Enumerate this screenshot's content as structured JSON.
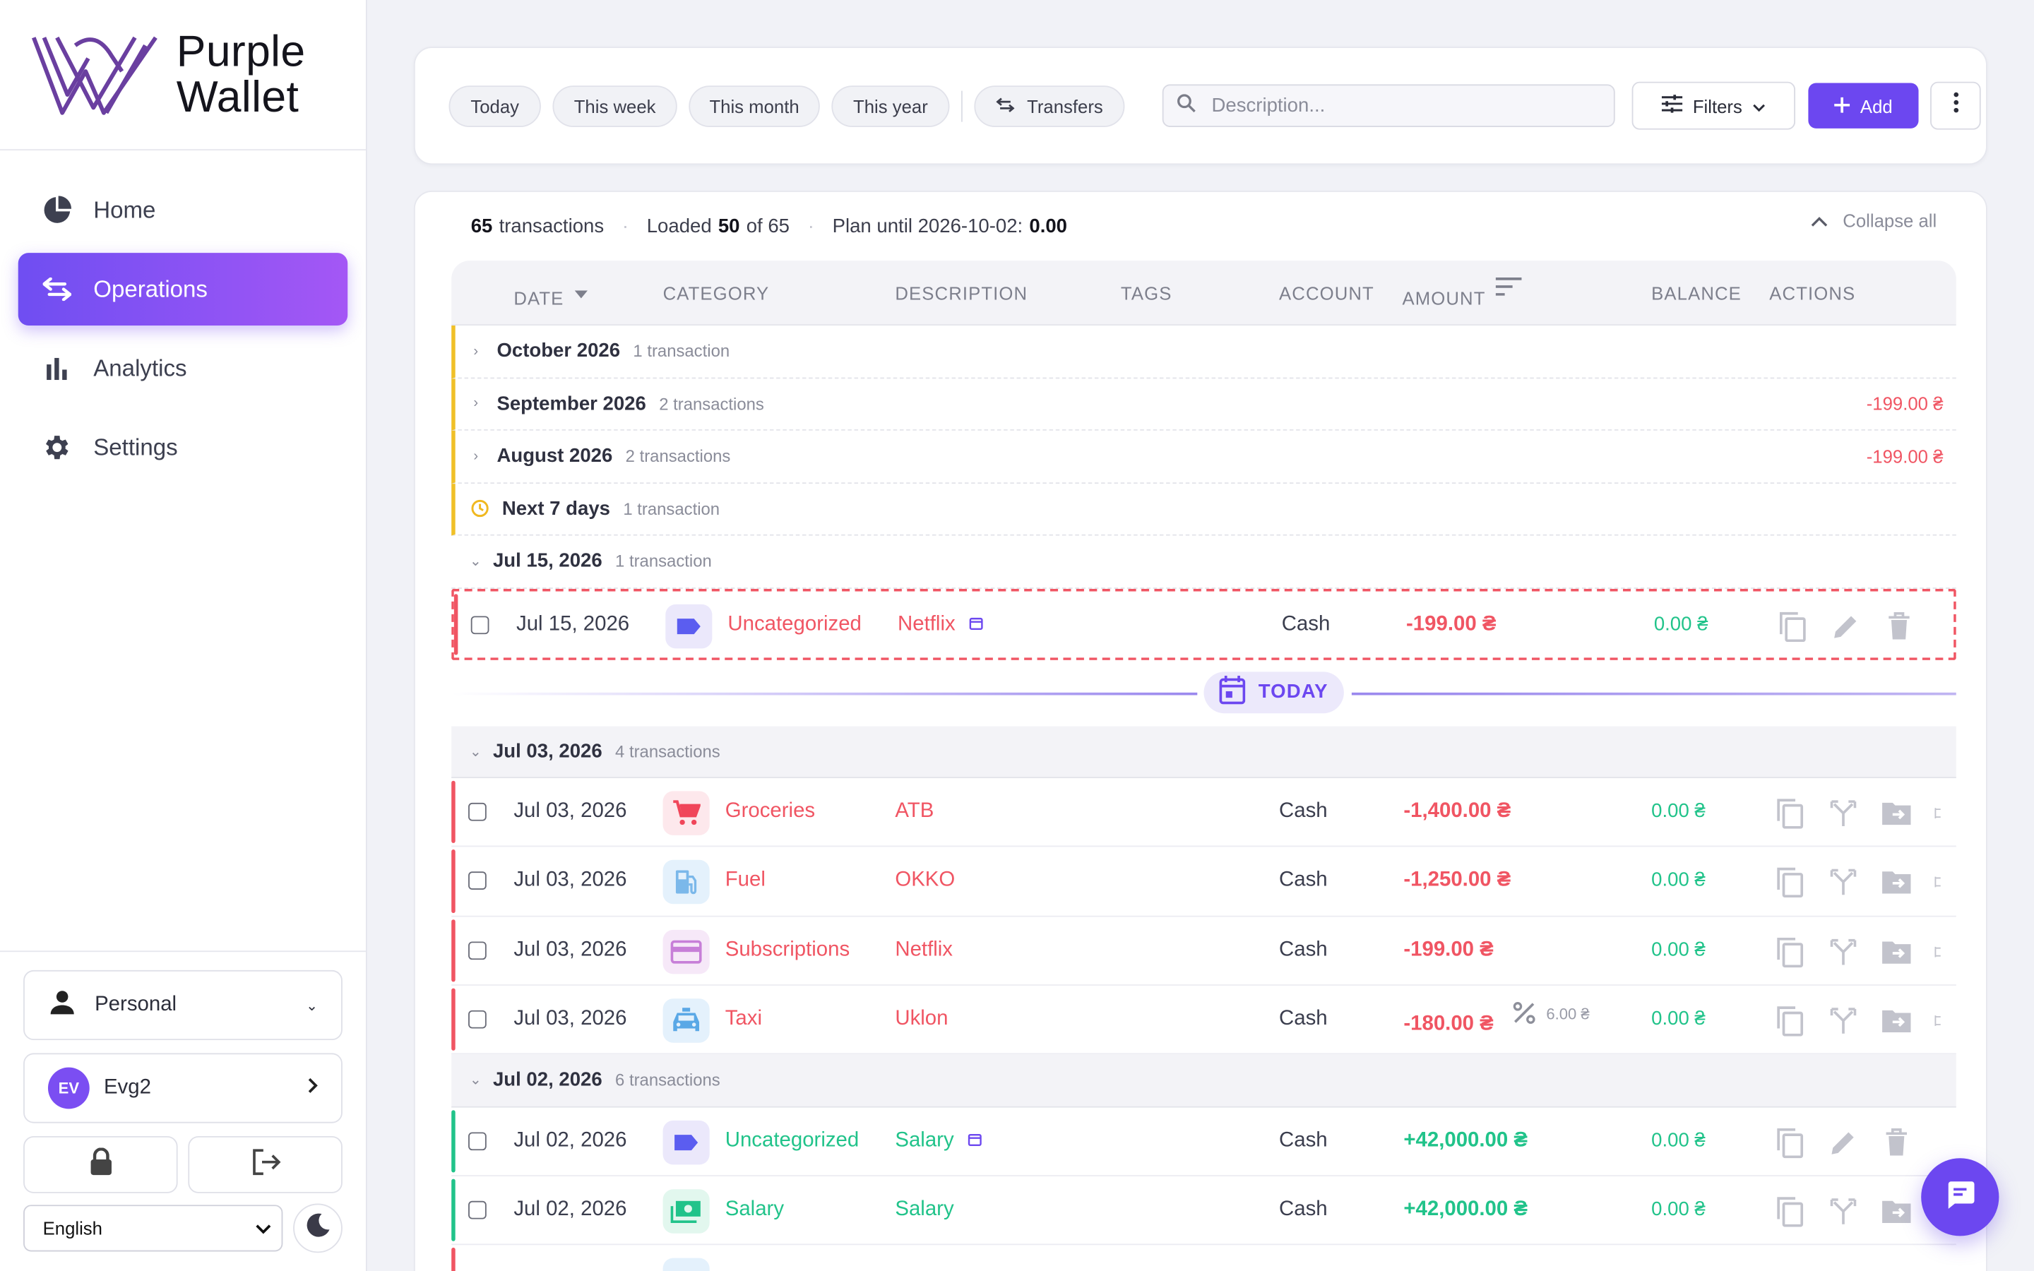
{
  "brand": {
    "line1": "Purple",
    "line2": "Wallet"
  },
  "nav": [
    {
      "label": "Home",
      "icon": "pie-chart-icon"
    },
    {
      "label": "Operations",
      "icon": "swap-arrows-icon",
      "active": true
    },
    {
      "label": "Analytics",
      "icon": "bar-chart-icon"
    },
    {
      "label": "Settings",
      "icon": "gear-icon"
    }
  ],
  "sidebar_bottom": {
    "workspace": "Personal",
    "user_initials": "EV",
    "user_name": "Evg2",
    "language": "English"
  },
  "toolbar": {
    "presets": [
      "Today",
      "This week",
      "This month",
      "This year"
    ],
    "transfers": "Transfers",
    "search_placeholder": "Description...",
    "filters": "Filters",
    "add": "Add"
  },
  "summary": {
    "count": "65",
    "count_label": "transactions",
    "loaded_prefix": "Loaded",
    "loaded": "50",
    "loaded_of": "of 65",
    "plan_label": "Plan until 2026-10-02:",
    "plan_value": "0.00",
    "collapse_all": "Collapse all"
  },
  "columns": {
    "date": "DATE",
    "category": "CATEGORY",
    "description": "DESCRIPTION",
    "tags": "TAGS",
    "account": "ACCOUNT",
    "amount": "AMOUNT",
    "balance": "BALANCE",
    "actions": "ACTIONS"
  },
  "future_groups": [
    {
      "title": "October 2026",
      "count": "1 transaction",
      "total": ""
    },
    {
      "title": "September 2026",
      "count": "2 transactions",
      "total": "-199.00 ₴"
    },
    {
      "title": "August 2026",
      "count": "2 transactions",
      "total": "-199.00 ₴"
    },
    {
      "title": "Next 7 days",
      "count": "1 transaction",
      "total": ""
    }
  ],
  "group_jul15": {
    "title": "Jul 15, 2026",
    "count": "1 transaction"
  },
  "pending_tx": {
    "date": "Jul 15, 2026",
    "category": "Uncategorized",
    "description": "Netflix",
    "account": "Cash",
    "amount": "-199.00 ₴",
    "balance": "0.00 ₴"
  },
  "today_label": "TODAY",
  "group_jul03": {
    "title": "Jul 03, 2026",
    "count": "4 transactions"
  },
  "jul03_rows": [
    {
      "date": "Jul 03, 2026",
      "category": "Groceries",
      "description": "ATB",
      "account": "Cash",
      "amount": "-1,400.00 ₴",
      "balance": "0.00 ₴"
    },
    {
      "date": "Jul 03, 2026",
      "category": "Fuel",
      "description": "OKKO",
      "account": "Cash",
      "amount": "-1,250.00 ₴",
      "balance": "0.00 ₴"
    },
    {
      "date": "Jul 03, 2026",
      "category": "Subscriptions",
      "description": "Netflix",
      "account": "Cash",
      "amount": "-199.00 ₴",
      "balance": "0.00 ₴"
    },
    {
      "date": "Jul 03, 2026",
      "category": "Taxi",
      "description": "Uklon",
      "account": "Cash",
      "amount": "-180.00 ₴",
      "discount": "6.00 ₴",
      "balance": "0.00 ₴"
    }
  ],
  "group_jul02": {
    "title": "Jul 02, 2026",
    "count": "6 transactions"
  },
  "jul02_rows": [
    {
      "date": "Jul 02, 2026",
      "category": "Uncategorized",
      "description": "Salary",
      "account": "Cash",
      "amount": "+42,000.00 ₴",
      "balance": "0.00 ₴"
    },
    {
      "date": "Jul 02, 2026",
      "category": "Salary",
      "description": "Salary",
      "account": "Cash",
      "amount": "+42,000.00 ₴",
      "balance": "0.00 ₴"
    }
  ],
  "colors": {
    "accent": "#6c47f0",
    "negative": "#f05563",
    "positive": "#21c38a",
    "future_marker": "#f0c028"
  }
}
